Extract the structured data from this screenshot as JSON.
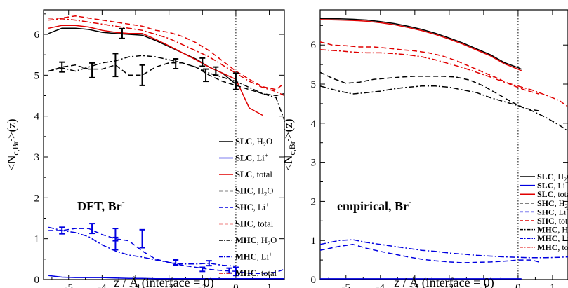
{
  "colors": {
    "black": "#000000",
    "blue": "#0000e0",
    "red": "#e00000"
  },
  "chart_data": [
    {
      "type": "line",
      "annotation": {
        "main": "DFT, Br",
        "sup": "-"
      },
      "xlabel": "z / Å (interface = 0)",
      "ylabel": {
        "pre": "<N",
        "sub": "c,Br",
        "subsup": "-",
        "post": ">(z)"
      },
      "xlim": [
        -5.75,
        1.45
      ],
      "ylim": [
        0,
        6.6
      ],
      "xticks": [
        -5,
        -4,
        -3,
        -2,
        -1,
        0,
        1
      ],
      "yticks": [
        0,
        1,
        2,
        3,
        4,
        5,
        6
      ],
      "vline": 0,
      "legend": [
        {
          "bold": "SLC",
          "rest": ", H",
          "sub": "2",
          "rest2": "O",
          "style": "solid",
          "color": "black"
        },
        {
          "bold": "SLC",
          "rest": ", Li",
          "sup": "+",
          "style": "solid",
          "color": "blue"
        },
        {
          "bold": "SLC",
          "rest": ", total",
          "style": "solid",
          "color": "red"
        },
        {
          "bold": "SHC",
          "rest": ", H",
          "sub": "2",
          "rest2": "O",
          "style": "dash",
          "color": "black"
        },
        {
          "bold": "SHC",
          "rest": ", Li",
          "sup": "+",
          "style": "dash",
          "color": "blue"
        },
        {
          "bold": "SHC",
          "rest": ", total",
          "style": "dash",
          "color": "red"
        },
        {
          "bold": "MHC",
          "rest": ", H",
          "sub": "2",
          "rest2": "O",
          "style": "dashdot",
          "color": "black"
        },
        {
          "bold": "MHC",
          "rest": ", Li",
          "sup": "+",
          "style": "dashdot",
          "color": "blue"
        },
        {
          "bold": "MHC",
          "rest": ", total",
          "style": "dashdot",
          "color": "red"
        }
      ],
      "series": [
        {
          "style": "solid",
          "color": "black",
          "x": [
            -5.6,
            -5.2,
            -4.8,
            -4.4,
            -4.0,
            -3.6,
            -3.2,
            -2.8,
            -2.4,
            -2.0,
            -1.6,
            -1.2,
            -0.8,
            -0.4,
            0.0
          ],
          "y": [
            6.02,
            6.15,
            6.15,
            6.12,
            6.05,
            6.02,
            6.0,
            5.98,
            5.85,
            5.7,
            5.55,
            5.4,
            5.2,
            5.05,
            4.78
          ]
        },
        {
          "style": "solid",
          "color": "blue",
          "x": [
            -5.6,
            -5.2,
            -4.8,
            -4.4,
            -4.0,
            -3.6,
            -3.2,
            -2.8,
            -2.4,
            -2.0,
            -1.6,
            -1.2,
            -0.8,
            -0.4,
            0.0,
            0.4,
            0.8,
            1.2,
            1.45
          ],
          "y": [
            0.1,
            0.06,
            0.05,
            0.05,
            0.05,
            0.04,
            0.03,
            0.03,
            0.02,
            0.02,
            0.02,
            0.02,
            0.02,
            0.02,
            0.02,
            0.02,
            0.02,
            0.02,
            0.02
          ]
        },
        {
          "style": "solid",
          "color": "red",
          "x": [
            -5.6,
            -5.2,
            -4.8,
            -4.4,
            -4.0,
            -3.6,
            -3.2,
            -2.8,
            -2.4,
            -2.0,
            -1.6,
            -1.2,
            -0.8,
            -0.4,
            0.0,
            0.4,
            0.8
          ],
          "y": [
            6.15,
            6.22,
            6.22,
            6.18,
            6.1,
            6.05,
            6.02,
            6.02,
            5.88,
            5.72,
            5.55,
            5.38,
            5.2,
            5.05,
            4.9,
            4.2,
            4.02
          ]
        },
        {
          "style": "dash",
          "color": "black",
          "x": [
            -5.6,
            -5.2,
            -4.8,
            -4.4,
            -4.0,
            -3.6,
            -3.2,
            -2.8,
            -2.4,
            -2.0,
            -1.6,
            -1.2,
            -0.8,
            -0.4,
            0.0,
            0.4,
            0.8,
            1.2,
            1.45
          ],
          "y": [
            5.1,
            5.2,
            5.25,
            5.15,
            5.15,
            5.25,
            5.0,
            5.0,
            5.2,
            5.3,
            5.3,
            5.2,
            5.0,
            4.85,
            4.75,
            4.65,
            4.55,
            4.5,
            4.55
          ]
        },
        {
          "style": "dash",
          "color": "blue",
          "x": [
            -5.6,
            -5.2,
            -4.8,
            -4.4,
            -4.0,
            -3.6,
            -3.2,
            -2.8,
            -2.4,
            -2.0,
            -1.6,
            -1.2,
            -0.8,
            -0.4,
            0.0,
            0.4,
            0.8,
            1.2,
            1.45
          ],
          "y": [
            1.2,
            1.2,
            1.25,
            1.25,
            1.1,
            1.0,
            0.95,
            0.7,
            0.5,
            0.42,
            0.35,
            0.3,
            0.25,
            0.22,
            0.2,
            0.15,
            0.15,
            0.18,
            0.25
          ]
        },
        {
          "style": "dash",
          "color": "red",
          "x": [
            -5.6,
            -5.2,
            -4.8,
            -4.4,
            -4.0,
            -3.6,
            -3.2,
            -2.8,
            -2.4,
            -2.0,
            -1.6,
            -1.2,
            -0.8,
            -0.4,
            0.0,
            0.4,
            0.8,
            1.2,
            1.45
          ],
          "y": [
            6.4,
            6.4,
            6.45,
            6.4,
            6.35,
            6.3,
            6.25,
            6.2,
            6.1,
            6.05,
            5.95,
            5.8,
            5.6,
            5.35,
            5.1,
            4.9,
            4.72,
            4.65,
            4.8
          ]
        },
        {
          "style": "dashdot",
          "color": "black",
          "x": [
            -5.6,
            -5.2,
            -4.8,
            -4.4,
            -4.0,
            -3.6,
            -3.2,
            -2.8,
            -2.4,
            -2.0,
            -1.6,
            -1.2,
            -0.8,
            -0.4,
            0.0,
            0.4,
            0.8,
            1.2,
            1.45
          ],
          "y": [
            5.1,
            5.18,
            5.1,
            5.2,
            5.3,
            5.35,
            5.45,
            5.48,
            5.45,
            5.38,
            5.3,
            5.2,
            5.05,
            4.95,
            4.85,
            4.7,
            4.55,
            4.45,
            3.9
          ]
        },
        {
          "style": "dashdot",
          "color": "blue",
          "x": [
            -5.6,
            -5.2,
            -4.8,
            -4.4,
            -4.0,
            -3.6,
            -3.2,
            -2.8,
            -2.4,
            -2.0,
            -1.6,
            -1.2,
            -0.8,
            -0.4,
            0.0
          ],
          "y": [
            1.28,
            1.2,
            1.15,
            1.05,
            0.85,
            0.7,
            0.6,
            0.55,
            0.48,
            0.42,
            0.38,
            0.38,
            0.4,
            0.35,
            0.33
          ]
        },
        {
          "style": "dashdot",
          "color": "red",
          "x": [
            -5.6,
            -5.2,
            -4.8,
            -4.4,
            -4.0,
            -3.6,
            -3.2,
            -2.8,
            -2.4,
            -2.0,
            -1.6,
            -1.2,
            -0.8,
            -0.4,
            0.0,
            0.4,
            0.8,
            1.2,
            1.45
          ],
          "y": [
            6.35,
            6.38,
            6.35,
            6.3,
            6.25,
            6.2,
            6.15,
            6.1,
            6.0,
            5.9,
            5.75,
            5.6,
            5.45,
            5.25,
            5.05,
            4.85,
            4.7,
            4.6,
            4.5
          ]
        }
      ],
      "errorbars": [
        {
          "color": "black",
          "x": -5.2,
          "y": 5.2,
          "err": 0.12
        },
        {
          "color": "black",
          "x": -4.3,
          "y": 5.12,
          "err": 0.18
        },
        {
          "color": "black",
          "x": -3.6,
          "y": 5.25,
          "err": 0.28
        },
        {
          "color": "black",
          "x": -2.8,
          "y": 5.0,
          "err": 0.25
        },
        {
          "color": "black",
          "x": -1.8,
          "y": 5.28,
          "err": 0.12
        },
        {
          "color": "black",
          "x": -0.9,
          "y": 5.0,
          "err": 0.15
        },
        {
          "color": "black",
          "x": -3.4,
          "y": 6.02,
          "err": 0.12
        },
        {
          "color": "black",
          "x": -1.0,
          "y": 5.32,
          "err": 0.1
        },
        {
          "color": "black",
          "x": -0.6,
          "y": 5.1,
          "err": 0.1
        },
        {
          "color": "black",
          "x": 0.0,
          "y": 4.85,
          "err": 0.2
        },
        {
          "color": "blue",
          "x": -5.2,
          "y": 1.2,
          "err": 0.08
        },
        {
          "color": "blue",
          "x": -4.3,
          "y": 1.25,
          "err": 0.12
        },
        {
          "color": "blue",
          "x": -3.6,
          "y": 1.1,
          "err": 0.15
        },
        {
          "color": "blue",
          "x": -3.6,
          "y": 0.88,
          "err": 0.15
        },
        {
          "color": "blue",
          "x": -2.8,
          "y": 1.0,
          "err": 0.22
        },
        {
          "color": "blue",
          "x": -1.8,
          "y": 0.42,
          "err": 0.06
        },
        {
          "color": "blue",
          "x": -0.8,
          "y": 0.4,
          "err": 0.06
        },
        {
          "color": "blue",
          "x": -1.0,
          "y": 0.25,
          "err": 0.05
        },
        {
          "color": "blue",
          "x": -0.2,
          "y": 0.22,
          "err": 0.06
        },
        {
          "color": "blue",
          "x": 0.0,
          "y": 0.2,
          "err": 0.1
        }
      ]
    },
    {
      "type": "line",
      "annotation": {
        "main": "empirical, Br",
        "sup": "-"
      },
      "xlabel": "z / Å (interface = 0)",
      "ylabel": {
        "pre": "<N",
        "sub": "c,Br",
        "subsup": "-",
        "post": ">(z)"
      },
      "xlim": [
        -5.75,
        1.45
      ],
      "ylim": [
        0,
        6.9
      ],
      "xticks": [
        -5,
        -4,
        -3,
        -2,
        -1,
        0,
        1
      ],
      "yticks": [
        0,
        1,
        2,
        3,
        4,
        5,
        6
      ],
      "vline": 0,
      "legend": [
        {
          "bold": "SLC",
          "rest": ", H",
          "sub": "2",
          "rest2": "O",
          "style": "solid",
          "color": "black"
        },
        {
          "bold": "SLC",
          "rest": ", Li",
          "sup": "+",
          "style": "solid",
          "color": "blue"
        },
        {
          "bold": "SLC",
          "rest": ", total",
          "style": "solid",
          "color": "red"
        },
        {
          "bold": "SHC",
          "rest": ", H",
          "sub": "2",
          "rest2": "O",
          "style": "dash",
          "color": "black"
        },
        {
          "bold": "SHC",
          "rest": ", Li",
          "sup": "+",
          "style": "dash",
          "color": "blue"
        },
        {
          "bold": "SHC",
          "rest": ", total",
          "style": "dash",
          "color": "red"
        },
        {
          "bold": "MHC",
          "rest": ", H",
          "sub": "2",
          "rest2": "O",
          "style": "dashdot",
          "color": "black"
        },
        {
          "bold": "MHC",
          "rest": ", Li",
          "sup": "+",
          "style": "dashdot",
          "color": "blue"
        },
        {
          "bold": "MHC",
          "rest": ", total",
          "style": "dashdot",
          "color": "red"
        }
      ],
      "series": [
        {
          "style": "solid",
          "color": "black",
          "x": [
            -5.75,
            -5.2,
            -4.8,
            -4.4,
            -4.0,
            -3.6,
            -3.2,
            -2.8,
            -2.4,
            -2.0,
            -1.6,
            -1.2,
            -0.8,
            -0.4,
            0.0,
            0.1
          ],
          "y": [
            6.68,
            6.67,
            6.66,
            6.64,
            6.6,
            6.55,
            6.48,
            6.4,
            6.3,
            6.18,
            6.05,
            5.9,
            5.75,
            5.55,
            5.42,
            5.38
          ]
        },
        {
          "style": "solid",
          "color": "blue",
          "x": [
            -5.75,
            -5.0,
            -4.0,
            -3.0,
            -2.0,
            -1.0,
            0.0,
            0.1
          ],
          "y": [
            0.02,
            0.02,
            0.02,
            0.02,
            0.02,
            0.02,
            0.02,
            0.02
          ]
        },
        {
          "style": "solid",
          "color": "red",
          "x": [
            -5.75,
            -5.2,
            -4.8,
            -4.4,
            -4.0,
            -3.6,
            -3.2,
            -2.8,
            -2.4,
            -2.0,
            -1.6,
            -1.2,
            -0.8,
            -0.4,
            0.0,
            0.1
          ],
          "y": [
            6.65,
            6.64,
            6.63,
            6.61,
            6.57,
            6.52,
            6.45,
            6.37,
            6.27,
            6.15,
            6.02,
            5.87,
            5.72,
            5.52,
            5.38,
            5.34
          ]
        },
        {
          "style": "dash",
          "color": "black",
          "x": [
            -5.75,
            -5.4,
            -5.0,
            -4.6,
            -4.2,
            -3.8,
            -3.4,
            -3.0,
            -2.6,
            -2.2,
            -1.8,
            -1.4,
            -1.0,
            -0.6,
            -0.2,
            0.2,
            0.6
          ],
          "y": [
            5.3,
            5.15,
            5.02,
            5.05,
            5.12,
            5.15,
            5.18,
            5.2,
            5.2,
            5.2,
            5.18,
            5.1,
            4.95,
            4.75,
            4.55,
            4.38,
            4.32
          ]
        },
        {
          "style": "dash",
          "color": "blue",
          "x": [
            -5.75,
            -5.2,
            -4.8,
            -4.4,
            -4.0,
            -3.6,
            -3.2,
            -2.8,
            -2.4,
            -2.0,
            -1.6,
            -1.2,
            -0.8,
            -0.4,
            0.0,
            0.4,
            0.6
          ],
          "y": [
            0.75,
            0.85,
            0.9,
            0.8,
            0.72,
            0.65,
            0.58,
            0.52,
            0.48,
            0.45,
            0.43,
            0.44,
            0.45,
            0.47,
            0.5,
            0.5,
            0.45
          ]
        },
        {
          "style": "dash",
          "color": "red",
          "x": [
            -5.75,
            -5.4,
            -5.0,
            -4.6,
            -4.2,
            -3.8,
            -3.4,
            -3.0,
            -2.6,
            -2.2,
            -1.8,
            -1.4,
            -1.0,
            -0.6,
            -0.2,
            0.2,
            0.6
          ],
          "y": [
            6.08,
            6.0,
            5.98,
            5.95,
            5.95,
            5.92,
            5.88,
            5.85,
            5.8,
            5.72,
            5.6,
            5.45,
            5.3,
            5.15,
            4.98,
            4.85,
            4.75
          ]
        },
        {
          "style": "dashdot",
          "color": "black",
          "x": [
            -5.75,
            -5.2,
            -4.8,
            -4.4,
            -4.0,
            -3.6,
            -3.2,
            -2.8,
            -2.4,
            -2.0,
            -1.6,
            -1.2,
            -0.8,
            -0.4,
            0.0,
            0.4,
            0.8,
            1.2,
            1.45
          ],
          "y": [
            4.95,
            4.82,
            4.75,
            4.78,
            4.82,
            4.88,
            4.92,
            4.95,
            4.95,
            4.92,
            4.85,
            4.78,
            4.65,
            4.55,
            4.45,
            4.32,
            4.15,
            3.95,
            3.8
          ]
        },
        {
          "style": "dashdot",
          "color": "blue",
          "x": [
            -5.75,
            -5.2,
            -4.8,
            -4.4,
            -4.0,
            -3.6,
            -3.2,
            -2.8,
            -2.4,
            -2.0,
            -1.6,
            -1.2,
            -0.8,
            -0.4,
            0.0,
            0.4,
            0.8,
            1.2,
            1.45
          ],
          "y": [
            0.9,
            1.0,
            1.02,
            0.95,
            0.9,
            0.85,
            0.8,
            0.75,
            0.72,
            0.68,
            0.65,
            0.62,
            0.6,
            0.58,
            0.57,
            0.56,
            0.56,
            0.57,
            0.58
          ]
        },
        {
          "style": "dashdot",
          "color": "red",
          "x": [
            -5.75,
            -5.2,
            -4.8,
            -4.4,
            -4.0,
            -3.6,
            -3.2,
            -2.8,
            -2.4,
            -2.0,
            -1.6,
            -1.2,
            -0.8,
            -0.4,
            0.0,
            0.4,
            0.8,
            1.2,
            1.45
          ],
          "y": [
            5.88,
            5.85,
            5.82,
            5.8,
            5.8,
            5.78,
            5.75,
            5.7,
            5.62,
            5.52,
            5.42,
            5.3,
            5.18,
            5.05,
            4.95,
            4.85,
            4.72,
            4.58,
            4.42
          ]
        }
      ],
      "errorbars": []
    }
  ]
}
